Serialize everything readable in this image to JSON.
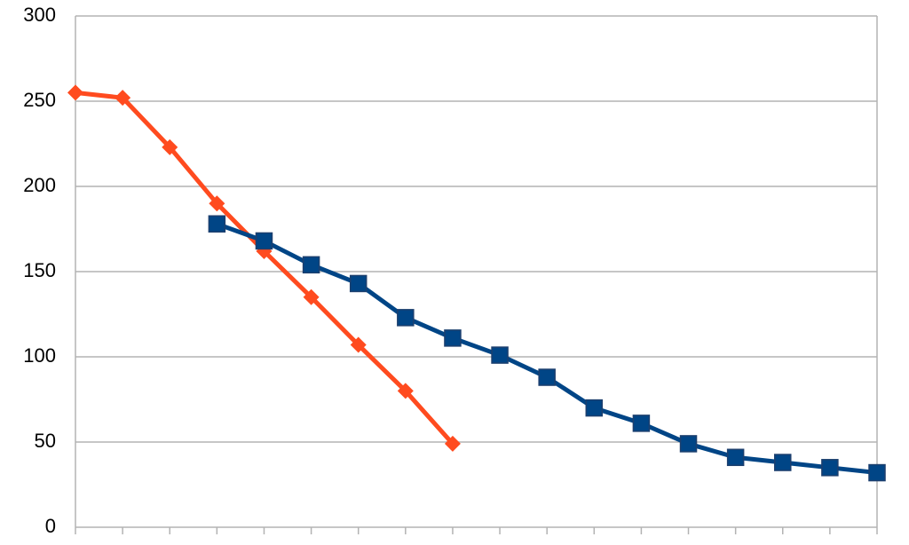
{
  "chart_data": {
    "type": "line",
    "categories": [
      null,
      null,
      null,
      null,
      null,
      null,
      null,
      null,
      null,
      null,
      null,
      null,
      null,
      null,
      null,
      null,
      null,
      null
    ],
    "series": [
      {
        "color": "#ff4b1f",
        "marker": "diamond",
        "values": [
          255,
          252,
          223,
          190,
          162,
          135,
          107,
          80,
          49,
          null,
          null,
          null,
          null,
          null,
          null,
          null,
          null,
          null
        ]
      },
      {
        "color": "#004586",
        "marker": "square",
        "values": [
          null,
          null,
          null,
          178,
          168,
          154,
          143,
          123,
          111,
          101,
          88,
          70,
          61,
          49,
          41,
          38,
          35,
          32
        ]
      }
    ],
    "ylim": [
      0,
      300
    ],
    "yticks": [
      0,
      50,
      100,
      150,
      200,
      250,
      300
    ],
    "grid": true
  }
}
